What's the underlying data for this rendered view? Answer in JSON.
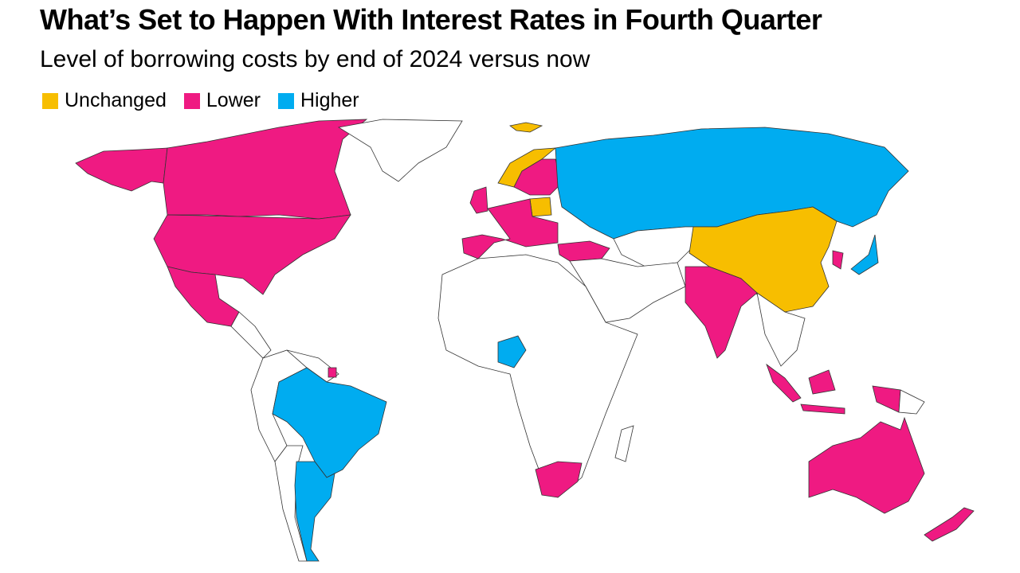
{
  "header": {
    "title": "What’s Set to Happen With Interest Rates in Fourth Quarter",
    "subtitle": "Level of borrowing costs by end of 2024 versus now"
  },
  "legend": [
    {
      "label": "Unchanged",
      "color": "#f7be00"
    },
    {
      "label": "Lower",
      "color": "#ef1a82"
    },
    {
      "label": "Higher",
      "color": "#00acf0"
    }
  ]
}
